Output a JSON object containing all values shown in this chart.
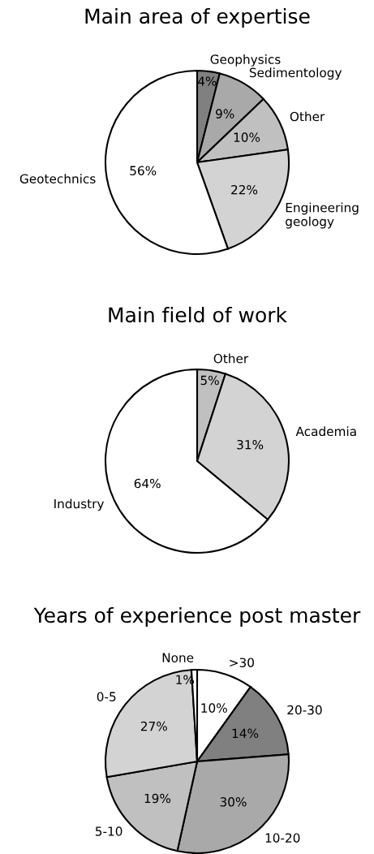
{
  "chart_data": [
    {
      "type": "pie",
      "title": "Main area of expertise",
      "categories": [
        "Geophysics",
        "Sedimentology",
        "Other",
        "Engineering\ngeology",
        "Geotechnics"
      ],
      "values": [
        4,
        9,
        10,
        22,
        56
      ],
      "value_labels": [
        "4%",
        "9%",
        "10%",
        "22%",
        "56%"
      ],
      "colors": [
        "#808080",
        "#a9a9a9",
        "#c0c0c0",
        "#d3d3d3",
        "#ffffff"
      ]
    },
    {
      "type": "pie",
      "title": "Main field of work",
      "categories": [
        "Other",
        "Academia",
        "Industry"
      ],
      "values": [
        5,
        31,
        64
      ],
      "value_labels": [
        "5%",
        "31%",
        "64%"
      ],
      "colors": [
        "#c0c0c0",
        "#d3d3d3",
        "#ffffff"
      ]
    },
    {
      "type": "pie",
      "title": "Years of experience post master",
      "categories": [
        ">30",
        "20-30",
        "10-20",
        "5-10",
        "0-5",
        "None"
      ],
      "values": [
        10,
        14,
        30,
        19,
        27,
        1
      ],
      "value_labels": [
        "10%",
        "14%",
        "30%",
        "19%",
        "27%",
        "1%"
      ],
      "colors": [
        "#ffffff",
        "#808080",
        "#a9a9a9",
        "#c0c0c0",
        "#d3d3d3",
        "#ffffff"
      ]
    }
  ]
}
